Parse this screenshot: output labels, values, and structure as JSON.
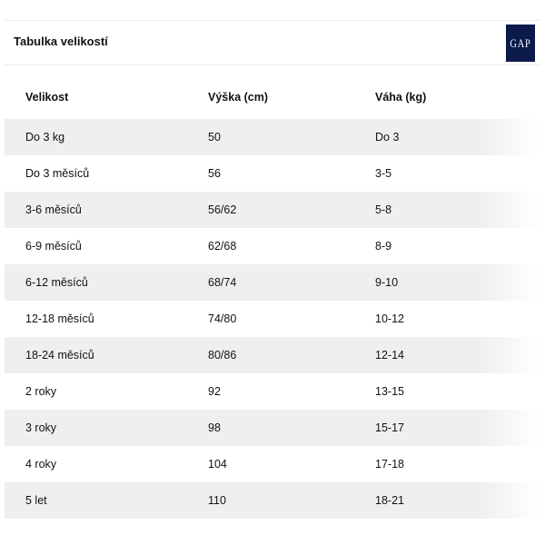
{
  "header": {
    "title": "Tabulka velikostí",
    "logo_text": "GAP",
    "logo_color": "#0b1a4a"
  },
  "table": {
    "columns": [
      "Velikost",
      "Výška (cm)",
      "Váha (kg)"
    ],
    "rows": [
      [
        "Do 3 kg",
        "50",
        "Do 3"
      ],
      [
        "Do 3 měsíců",
        "56",
        "3-5"
      ],
      [
        "3-6 měsíců",
        "56/62",
        "5-8"
      ],
      [
        "6-9 měsíců",
        "62/68",
        "8-9"
      ],
      [
        "6-12 měsíců",
        "68/74",
        "9-10"
      ],
      [
        "12-18 měsíců",
        "74/80",
        "10-12"
      ],
      [
        "18-24 měsíců",
        "80/86",
        "12-14"
      ],
      [
        "2 roky",
        "92",
        "13-15"
      ],
      [
        "3 roky",
        "98",
        "15-17"
      ],
      [
        "4 roky",
        "104",
        "17-18"
      ],
      [
        "5 let",
        "110",
        "18-21"
      ]
    ]
  }
}
